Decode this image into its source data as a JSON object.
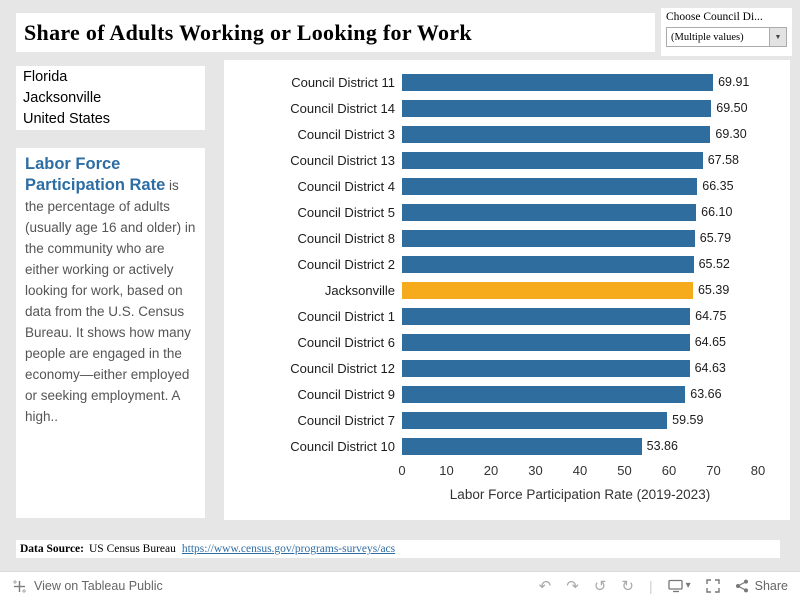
{
  "header": {
    "title": "Share of Adults Working or Looking for Work",
    "filter_label": "Choose Council Di...",
    "filter_value": "(Multiple values)"
  },
  "sidebar": {
    "geo_list": [
      "Florida",
      "Jacksonville",
      "United States"
    ],
    "definition_title": "Labor Force Participation Rate",
    "definition_body": " is the percentage of adults (usually age 16 and older) in the community who are either working or actively looking for work, based on data from the U.S. Census Bureau. It shows how many people are engaged in the economy—either employed or seeking employment. A high.."
  },
  "chart_data": {
    "type": "bar",
    "orientation": "horizontal",
    "categories": [
      "Council District 11",
      "Council District 14",
      "Council District 3",
      "Council District 13",
      "Council District 4",
      "Council District 5",
      "Council District 8",
      "Council District 2",
      "Jacksonville",
      "Council District 1",
      "Council District 6",
      "Council District 12",
      "Council District 9",
      "Council District 7",
      "Council District 10"
    ],
    "values": [
      69.91,
      69.5,
      69.3,
      67.58,
      66.35,
      66.1,
      65.79,
      65.52,
      65.39,
      64.75,
      64.65,
      64.63,
      63.66,
      59.59,
      53.86
    ],
    "value_decimals": 2,
    "xlabel": "Labor Force Participation Rate (2019-2023)",
    "xlim": [
      0,
      80
    ],
    "xticks": [
      0,
      10,
      20,
      30,
      40,
      50,
      60,
      70,
      80
    ],
    "grid": false,
    "bar_color": "#2e6d9e",
    "highlight_category": "Jacksonville",
    "highlight_color": "#f5ab1c"
  },
  "footer": {
    "source_label": "Data Source:",
    "source_text": "US Census Bureau",
    "source_link": "https://www.census.gov/programs-surveys/acs"
  },
  "toolbar": {
    "view_label": "View on Tableau Public",
    "share_label": "Share"
  },
  "icons": {
    "dropdown_caret": "▼",
    "undo": "↶",
    "redo": "↷",
    "reset": "↺",
    "replay": "↻",
    "download_caret": "▾",
    "divider": "|"
  }
}
